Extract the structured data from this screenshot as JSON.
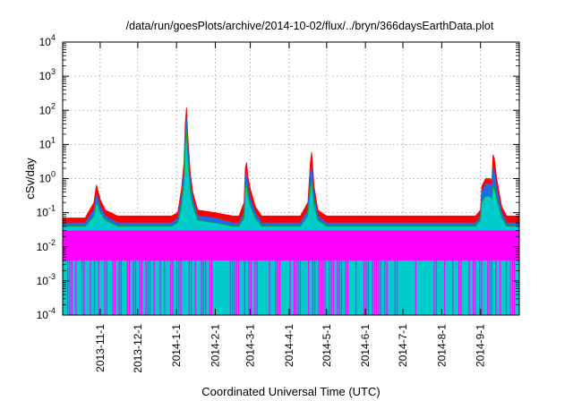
{
  "chart_data": {
    "type": "area",
    "title": "/data/run/goesPlots/archive/2014-10-02/flux/../bryn/366daysEarthData.plot",
    "xlabel": "Coordinated Universal Time (UTC)",
    "ylabel": "cSv/day",
    "yscale": "log",
    "xlim": [
      "2013-10-02",
      "2014-10-02"
    ],
    "ylim": [
      0.0001,
      10000
    ],
    "grid": true,
    "y_ticks": [
      {
        "base": "10",
        "exp": "-4",
        "value": 0.0001
      },
      {
        "base": "10",
        "exp": "-3",
        "value": 0.001
      },
      {
        "base": "10",
        "exp": "-2",
        "value": 0.01
      },
      {
        "base": "10",
        "exp": "-1",
        "value": 0.1
      },
      {
        "base": "10",
        "exp": "0",
        "value": 1
      },
      {
        "base": "10",
        "exp": "1",
        "value": 10
      },
      {
        "base": "10",
        "exp": "2",
        "value": 100
      },
      {
        "base": "10",
        "exp": "3",
        "value": 1000
      },
      {
        "base": "10",
        "exp": "4",
        "value": 10000
      }
    ],
    "x_ticks": [
      {
        "label": "2013-11-1",
        "date": "2013-11-01"
      },
      {
        "label": "2013-12-1",
        "date": "2013-12-01"
      },
      {
        "label": "2014-1-1",
        "date": "2014-01-01"
      },
      {
        "label": "2014-2-1",
        "date": "2014-02-01"
      },
      {
        "label": "2014-3-1",
        "date": "2014-03-01"
      },
      {
        "label": "2014-4-1",
        "date": "2014-04-01"
      },
      {
        "label": "2014-5-1",
        "date": "2014-05-01"
      },
      {
        "label": "2014-6-1",
        "date": "2014-06-01"
      },
      {
        "label": "2014-7-1",
        "date": "2014-07-01"
      },
      {
        "label": "2014-8-1",
        "date": "2014-08-01"
      },
      {
        "label": "2014-9-1",
        "date": "2014-09-01"
      }
    ],
    "series_colors": [
      "#ff0000",
      "#00bb00",
      "#1e6be8",
      "#00cccc",
      "#ff00ff"
    ],
    "envelope": {
      "x": [
        "2013-10-02",
        "2013-10-20",
        "2013-10-27",
        "2013-10-29",
        "2013-11-01",
        "2013-11-05",
        "2013-11-15",
        "2013-11-22",
        "2013-12-01",
        "2013-12-20",
        "2013-12-28",
        "2014-01-02",
        "2014-01-05",
        "2014-01-07",
        "2014-01-08",
        "2014-01-09",
        "2014-01-10",
        "2014-01-12",
        "2014-01-14",
        "2014-01-18",
        "2014-02-01",
        "2014-02-15",
        "2014-02-20",
        "2014-02-24",
        "2014-02-25",
        "2014-02-26",
        "2014-02-27",
        "2014-03-01",
        "2014-03-05",
        "2014-03-10",
        "2014-03-20",
        "2014-04-01",
        "2014-04-10",
        "2014-04-16",
        "2014-04-18",
        "2014-04-19",
        "2014-04-21",
        "2014-04-24",
        "2014-05-01",
        "2014-05-20",
        "2014-06-10",
        "2014-07-01",
        "2014-07-20",
        "2014-08-10",
        "2014-08-28",
        "2014-09-01",
        "2014-09-02",
        "2014-09-05",
        "2014-09-09",
        "2014-09-10",
        "2014-09-11",
        "2014-09-12",
        "2014-09-14",
        "2014-09-18",
        "2014-09-22",
        "2014-10-02"
      ],
      "red": [
        0.07,
        0.07,
        0.2,
        0.65,
        0.25,
        0.12,
        0.08,
        0.08,
        0.08,
        0.08,
        0.08,
        0.1,
        0.5,
        3,
        40,
        120,
        20,
        1.5,
        0.4,
        0.12,
        0.1,
        0.08,
        0.08,
        0.2,
        2,
        3,
        1.2,
        0.5,
        0.15,
        0.08,
        0.08,
        0.08,
        0.08,
        0.2,
        3,
        6,
        0.6,
        0.12,
        0.08,
        0.08,
        0.08,
        0.08,
        0.08,
        0.08,
        0.08,
        0.12,
        0.6,
        1,
        1,
        0.8,
        5,
        4,
        1,
        0.15,
        0.08,
        0.08
      ],
      "blue": [
        0.05,
        0.05,
        0.12,
        0.35,
        0.15,
        0.08,
        0.05,
        0.05,
        0.05,
        0.05,
        0.05,
        0.07,
        0.3,
        1.5,
        20,
        60,
        10,
        0.8,
        0.25,
        0.08,
        0.07,
        0.05,
        0.05,
        0.1,
        1,
        1.5,
        0.6,
        0.25,
        0.1,
        0.05,
        0.05,
        0.05,
        0.05,
        0.12,
        1.5,
        2,
        0.3,
        0.08,
        0.05,
        0.05,
        0.05,
        0.05,
        0.05,
        0.05,
        0.05,
        0.08,
        0.4,
        0.7,
        0.7,
        0.5,
        2,
        1.5,
        0.5,
        0.1,
        0.05,
        0.05
      ],
      "green": [
        0.04,
        0.04,
        0.08,
        0.2,
        0.1,
        0.06,
        0.04,
        0.04,
        0.04,
        0.04,
        0.04,
        0.05,
        0.15,
        0.7,
        8,
        25,
        4,
        0.4,
        0.15,
        0.06,
        0.05,
        0.04,
        0.04,
        0.07,
        0.5,
        0.7,
        0.3,
        0.15,
        0.07,
        0.04,
        0.04,
        0.04,
        0.04,
        0.08,
        0.5,
        0.8,
        0.15,
        0.06,
        0.04,
        0.04,
        0.04,
        0.04,
        0.04,
        0.04,
        0.04,
        0.06,
        0.2,
        0.3,
        0.3,
        0.25,
        0.6,
        0.5,
        0.25,
        0.07,
        0.04,
        0.04
      ],
      "magenta_top": 0.03,
      "magenta_floor": 0.004
    }
  }
}
